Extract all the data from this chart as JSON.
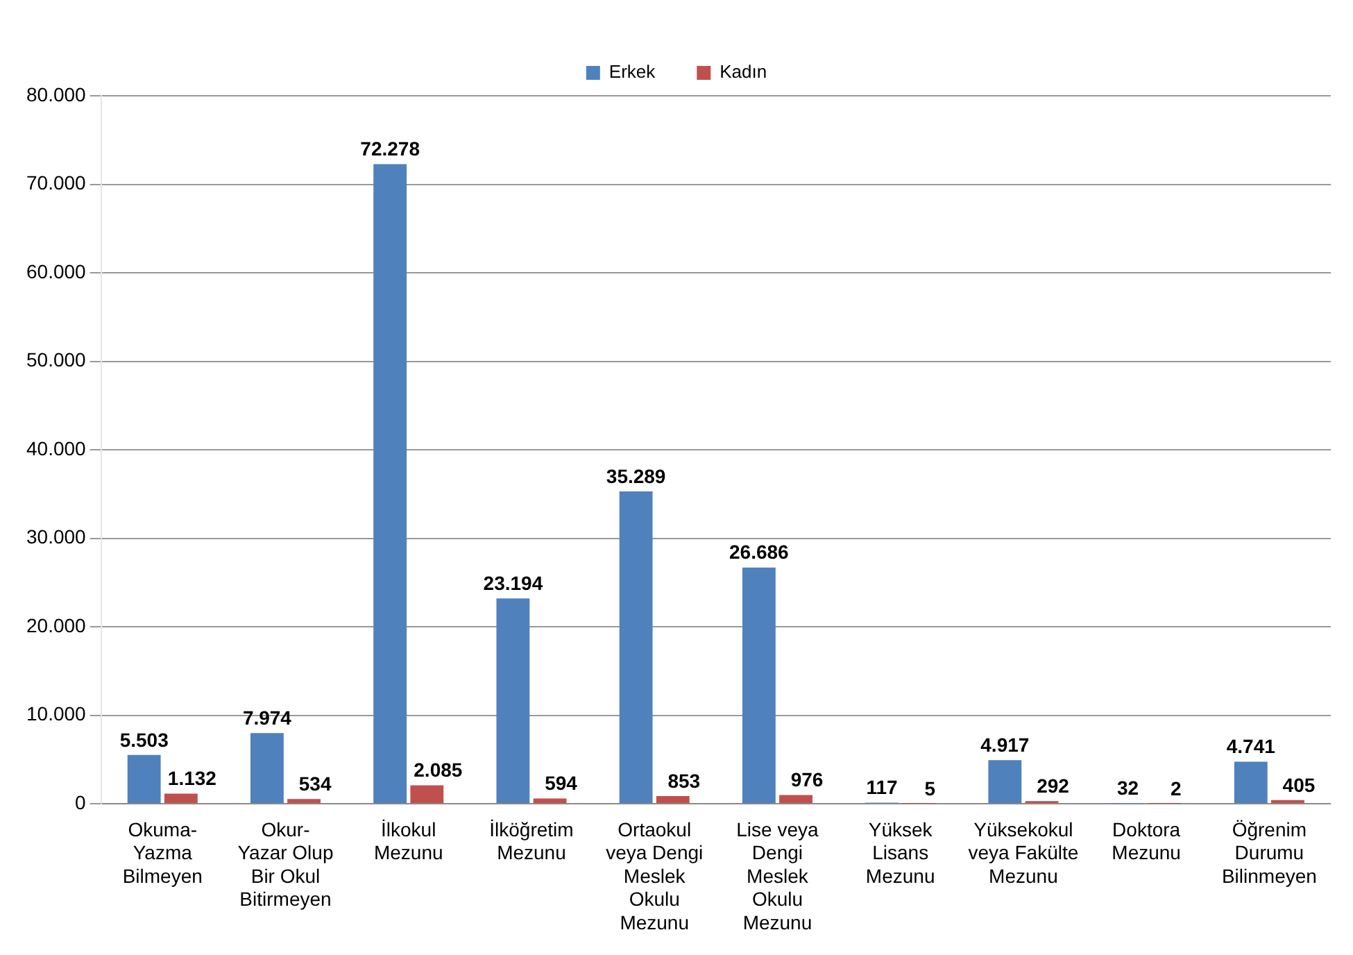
{
  "chart_data": {
    "type": "bar",
    "categories": [
      "Okuma-Yazma Bilmeyen",
      "Okur-Yazar Olup Bir Okul Bitirmeyen",
      "İlkokul Mezunu",
      "İlköğretim Mezunu",
      "Ortaokul veya Dengi Meslek Okulu Mezunu",
      "Lise veya Dengi Meslek Okulu Mezunu",
      "Yüksek Lisans Mezunu",
      "Yüksekokul veya Fakülte Mezunu",
      "Doktora Mezunu",
      "Öğrenim Durumu Bilinmeyen"
    ],
    "series": [
      {
        "name": "Erkek",
        "color": "#4f81bd",
        "values": [
          5503,
          7974,
          72278,
          23194,
          35289,
          26686,
          117,
          4917,
          32,
          4741
        ],
        "value_labels": [
          "5.503",
          "7.974",
          "72.278",
          "23.194",
          "35.289",
          "26.686",
          "117",
          "4.917",
          "32",
          "4.741"
        ]
      },
      {
        "name": "Kadın",
        "color": "#c0504d",
        "values": [
          1132,
          534,
          2085,
          594,
          853,
          976,
          5,
          292,
          2,
          405
        ],
        "value_labels": [
          "1.132",
          "534",
          "2.085",
          "594",
          "853",
          "976",
          "5",
          "292",
          "2",
          "405"
        ]
      }
    ],
    "ylim": [
      0,
      80000
    ],
    "yticks": [
      0,
      {
        "value": 10000,
        "label": "10.000"
      },
      {
        "value": 20000,
        "label": "20.000"
      },
      {
        "value": 30000,
        "label": "30.000"
      },
      {
        "value": 40000,
        "label": "40.000"
      },
      {
        "value": 50000,
        "label": "50.000"
      },
      {
        "value": 60000,
        "label": "60.000"
      },
      {
        "value": 70000,
        "label": "70.000"
      },
      {
        "value": 80000,
        "label": "80.000"
      }
    ],
    "grid": "y",
    "legend": "top"
  }
}
